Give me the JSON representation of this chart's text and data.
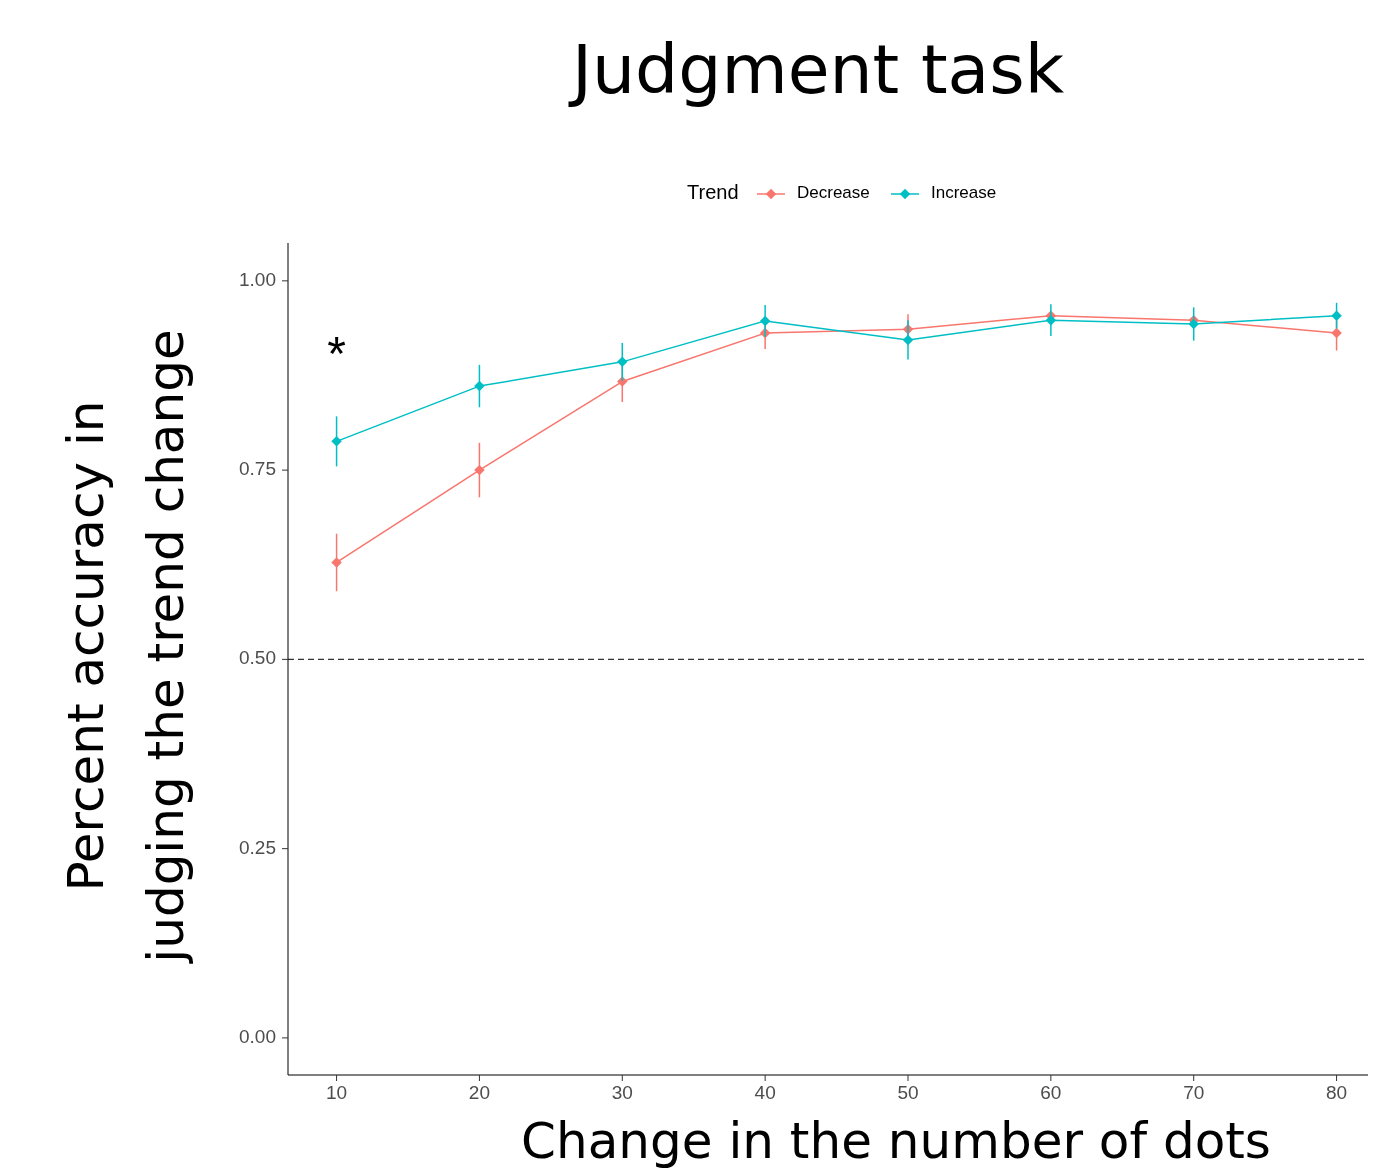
{
  "chart_data": {
    "type": "line",
    "title": "Judgment task",
    "xlabel": "Change in the number of dots",
    "ylabel": "Percent accuracy in judging the trend change",
    "legend_title": "Trend",
    "legend": "top",
    "marker": "diamond",
    "line_style": "solid",
    "grid": false,
    "x": [
      10,
      20,
      30,
      40,
      50,
      60,
      70,
      80
    ],
    "series": [
      {
        "name": "Decrease",
        "color": "#f8766d",
        "values": [
          0.628,
          0.75,
          0.867,
          0.931,
          0.936,
          0.954,
          0.948,
          0.931
        ],
        "errors": [
          0.038,
          0.036,
          0.027,
          0.021,
          0.02,
          null,
          null,
          0.023
        ]
      },
      {
        "name": "Increase",
        "color": "#00bfc4",
        "values": [
          0.788,
          0.861,
          0.893,
          0.947,
          0.922,
          0.948,
          0.943,
          0.954
        ],
        "errors": [
          0.033,
          0.028,
          0.025,
          0.021,
          0.026,
          0.021,
          0.022,
          0.017
        ]
      }
    ],
    "xlim": [
      6.6,
      82.2
    ],
    "ylim": [
      -0.049,
      1.05
    ],
    "xticks": [
      10,
      20,
      30,
      40,
      50,
      60,
      70,
      80
    ],
    "yticks": [
      {
        "value": 0,
        "label": "0.00"
      },
      {
        "value": 0.25,
        "label": "0.25"
      },
      {
        "value": 0.5,
        "label": "0.50"
      },
      {
        "value": 0.75,
        "label": "0.75"
      },
      {
        "value": 1,
        "label": "1.00"
      }
    ],
    "ref_lines": [
      {
        "axis": "y",
        "value": 0.5,
        "line_style": "dashed",
        "color": "#333333"
      }
    ],
    "annotations": [
      "*"
    ]
  }
}
